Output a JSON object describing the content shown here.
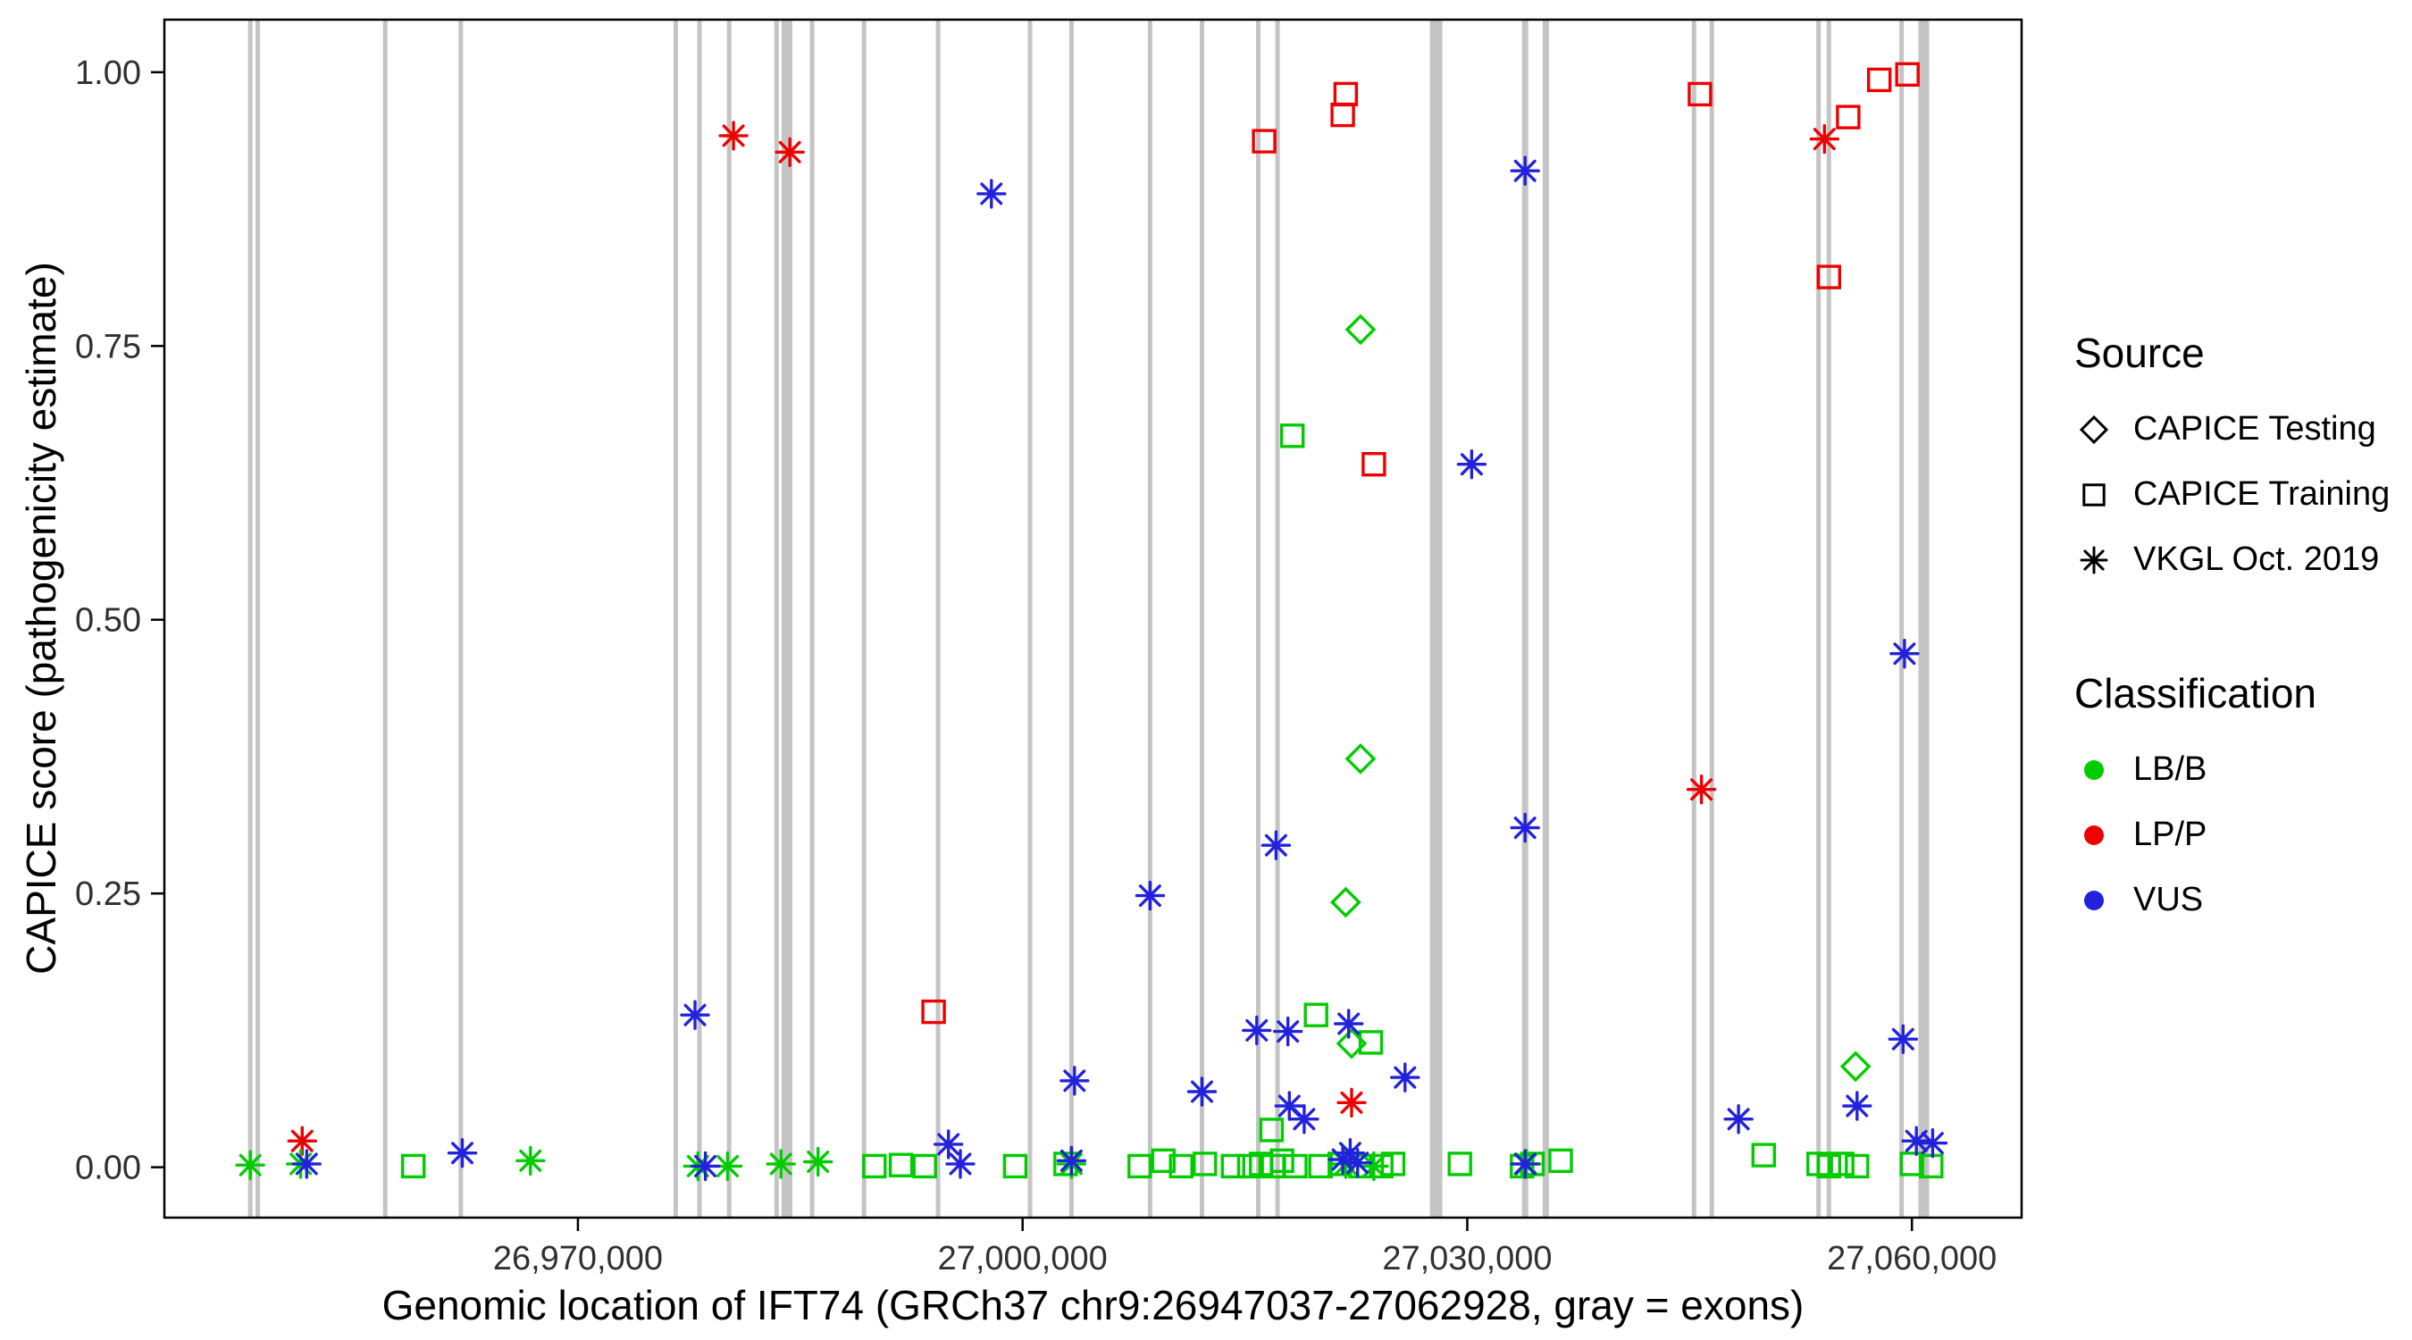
{
  "chart_data": {
    "type": "scatter",
    "title": "",
    "xlabel": "Genomic location of IFT74 (GRCh37 chr9:26947037-27062928, gray = exons)",
    "ylabel": "CAPICE score (pathogenicity estimate)",
    "xlim": [
      26942100,
      27067400
    ],
    "ylim": [
      -0.046,
      1.048
    ],
    "grid": "off",
    "x_ticks": [
      {
        "value": 26970000,
        "label": "26,970,000"
      },
      {
        "value": 27000000,
        "label": "27,000,000"
      },
      {
        "value": 27030000,
        "label": "27,030,000"
      },
      {
        "value": 27060000,
        "label": "27,060,000"
      }
    ],
    "y_ticks": [
      {
        "value": 0.0,
        "label": "0.00"
      },
      {
        "value": 0.25,
        "label": "0.25"
      },
      {
        "value": 0.5,
        "label": "0.50"
      },
      {
        "value": 0.75,
        "label": "0.75"
      },
      {
        "value": 1.0,
        "label": "1.00"
      }
    ],
    "colors": {
      "exon": "#c4c4c4",
      "panel_border": "#000000",
      "axis_text": "#303030"
    },
    "legend": {
      "source_title": "Source",
      "classification_title": "Classification",
      "position": "right",
      "sources": [
        {
          "label": "CAPICE Testing",
          "shape": "diamond"
        },
        {
          "label": "CAPICE Training",
          "shape": "square"
        },
        {
          "label": "VKGL Oct. 2019",
          "shape": "asterisk"
        }
      ],
      "classes": [
        {
          "label": "LB/B",
          "color": "#00cc00"
        },
        {
          "label": "LP/P",
          "color": "#ee0000"
        },
        {
          "label": "VUS",
          "color": "#2222dd"
        }
      ]
    },
    "exons_columns": [
      "genomic_position",
      "band_width_px"
    ],
    "exons": [
      [
        26947900,
        5
      ],
      [
        26948400,
        5
      ],
      [
        26957000,
        5
      ],
      [
        26962100,
        5
      ],
      [
        26976600,
        5
      ],
      [
        26978200,
        5
      ],
      [
        26980200,
        5
      ],
      [
        26983400,
        5
      ],
      [
        26984100,
        12
      ],
      [
        26985800,
        5
      ],
      [
        26989300,
        5
      ],
      [
        26994300,
        5
      ],
      [
        27000500,
        5
      ],
      [
        27003300,
        5
      ],
      [
        27008600,
        5
      ],
      [
        27012100,
        5
      ],
      [
        27015900,
        5
      ],
      [
        27017200,
        5
      ],
      [
        27027900,
        14
      ],
      [
        27033900,
        7
      ],
      [
        27035300,
        7
      ],
      [
        27045300,
        5
      ],
      [
        27046500,
        5
      ],
      [
        27053700,
        5
      ],
      [
        27054400,
        5
      ],
      [
        27059300,
        5
      ],
      [
        27060800,
        12
      ]
    ],
    "points_columns": [
      "genomic_position",
      "capice_score",
      "source",
      "classification"
    ],
    "points": [
      [
        26980500,
        0.942,
        "VKGL Oct. 2019",
        "LP/P"
      ],
      [
        26984300,
        0.927,
        "VKGL Oct. 2019",
        "LP/P"
      ],
      [
        27054100,
        0.939,
        "VKGL Oct. 2019",
        "LP/P"
      ],
      [
        26951400,
        0.024,
        "VKGL Oct. 2019",
        "LP/P"
      ],
      [
        27022200,
        0.059,
        "VKGL Oct. 2019",
        "LP/P"
      ],
      [
        27045800,
        0.345,
        "VKGL Oct. 2019",
        "LP/P"
      ],
      [
        27016300,
        0.937,
        "CAPICE Training",
        "LP/P"
      ],
      [
        27021800,
        0.98,
        "CAPICE Training",
        "LP/P"
      ],
      [
        27021600,
        0.961,
        "CAPICE Training",
        "LP/P"
      ],
      [
        27023700,
        0.642,
        "CAPICE Training",
        "LP/P"
      ],
      [
        26994000,
        0.142,
        "CAPICE Training",
        "LP/P"
      ],
      [
        27045700,
        0.98,
        "CAPICE Training",
        "LP/P"
      ],
      [
        27054400,
        0.813,
        "CAPICE Training",
        "LP/P"
      ],
      [
        27055700,
        0.959,
        "CAPICE Training",
        "LP/P"
      ],
      [
        27057800,
        0.993,
        "CAPICE Training",
        "LP/P"
      ],
      [
        27059700,
        0.998,
        "CAPICE Training",
        "LP/P"
      ],
      [
        27022800,
        0.765,
        "CAPICE Testing",
        "LB/B"
      ],
      [
        27022800,
        0.373,
        "CAPICE Testing",
        "LB/B"
      ],
      [
        27021800,
        0.242,
        "CAPICE Testing",
        "LB/B"
      ],
      [
        27022200,
        0.113,
        "CAPICE Testing",
        "LB/B"
      ],
      [
        27056200,
        0.092,
        "CAPICE Testing",
        "LB/B"
      ],
      [
        27018200,
        0.668,
        "CAPICE Training",
        "LB/B"
      ],
      [
        27019800,
        0.139,
        "CAPICE Training",
        "LB/B"
      ],
      [
        27023500,
        0.114,
        "CAPICE Training",
        "LB/B"
      ],
      [
        27016800,
        0.034,
        "CAPICE Training",
        "LB/B"
      ],
      [
        26958900,
        0.001,
        "CAPICE Training",
        "LB/B"
      ],
      [
        26990000,
        0.001,
        "CAPICE Training",
        "LB/B"
      ],
      [
        26991800,
        0.002,
        "CAPICE Training",
        "LB/B"
      ],
      [
        26993400,
        0.001,
        "CAPICE Training",
        "LB/B"
      ],
      [
        26999500,
        0.001,
        "CAPICE Training",
        "LB/B"
      ],
      [
        27002900,
        0.003,
        "CAPICE Training",
        "LB/B"
      ],
      [
        27007900,
        0.001,
        "CAPICE Training",
        "LB/B"
      ],
      [
        27009500,
        0.006,
        "CAPICE Training",
        "LB/B"
      ],
      [
        27010700,
        0.001,
        "CAPICE Training",
        "LB/B"
      ],
      [
        27012300,
        0.003,
        "CAPICE Training",
        "LB/B"
      ],
      [
        27014200,
        0.001,
        "CAPICE Training",
        "LB/B"
      ],
      [
        27015300,
        0.001,
        "CAPICE Training",
        "LB/B"
      ],
      [
        27016100,
        0.003,
        "CAPICE Training",
        "LB/B"
      ],
      [
        27016900,
        0.001,
        "CAPICE Training",
        "LB/B"
      ],
      [
        27017500,
        0.006,
        "CAPICE Training",
        "LB/B"
      ],
      [
        27018400,
        0.001,
        "CAPICE Training",
        "LB/B"
      ],
      [
        27020100,
        0.001,
        "CAPICE Training",
        "LB/B"
      ],
      [
        27021400,
        0.003,
        "CAPICE Training",
        "LB/B"
      ],
      [
        27022800,
        0.001,
        "CAPICE Training",
        "LB/B"
      ],
      [
        27024200,
        0.001,
        "CAPICE Training",
        "LB/B"
      ],
      [
        27025000,
        0.003,
        "CAPICE Training",
        "LB/B"
      ],
      [
        27029500,
        0.003,
        "CAPICE Training",
        "LB/B"
      ],
      [
        27033700,
        0.001,
        "CAPICE Training",
        "LB/B"
      ],
      [
        27034400,
        0.003,
        "CAPICE Training",
        "LB/B"
      ],
      [
        27036300,
        0.006,
        "CAPICE Training",
        "LB/B"
      ],
      [
        27050000,
        0.011,
        "CAPICE Training",
        "LB/B"
      ],
      [
        27053700,
        0.003,
        "CAPICE Training",
        "LB/B"
      ],
      [
        27054400,
        0.001,
        "CAPICE Training",
        "LB/B"
      ],
      [
        27055300,
        0.003,
        "CAPICE Training",
        "LB/B"
      ],
      [
        27056300,
        0.001,
        "CAPICE Training",
        "LB/B"
      ],
      [
        27060000,
        0.003,
        "CAPICE Training",
        "LB/B"
      ],
      [
        27061300,
        0.001,
        "CAPICE Training",
        "LB/B"
      ],
      [
        26947900,
        0.002,
        "VKGL Oct. 2019",
        "LB/B"
      ],
      [
        26951300,
        0.003,
        "VKGL Oct. 2019",
        "LB/B"
      ],
      [
        26966800,
        0.006,
        "VKGL Oct. 2019",
        "LB/B"
      ],
      [
        26978100,
        0.001,
        "VKGL Oct. 2019",
        "LB/B"
      ],
      [
        26980100,
        0.001,
        "VKGL Oct. 2019",
        "LB/B"
      ],
      [
        26983700,
        0.003,
        "VKGL Oct. 2019",
        "LB/B"
      ],
      [
        26986200,
        0.005,
        "VKGL Oct. 2019",
        "LB/B"
      ],
      [
        27003300,
        0.003,
        "VKGL Oct. 2019",
        "LB/B"
      ],
      [
        27021800,
        0.003,
        "VKGL Oct. 2019",
        "LB/B"
      ],
      [
        27023700,
        0.001,
        "VKGL Oct. 2019",
        "LB/B"
      ],
      [
        27034000,
        0.003,
        "VKGL Oct. 2019",
        "LB/B"
      ],
      [
        26997900,
        0.889,
        "VKGL Oct. 2019",
        "VUS"
      ],
      [
        27033900,
        0.91,
        "VKGL Oct. 2019",
        "VUS"
      ],
      [
        27030300,
        0.642,
        "VKGL Oct. 2019",
        "VUS"
      ],
      [
        27059500,
        0.469,
        "VKGL Oct. 2019",
        "VUS"
      ],
      [
        27017100,
        0.294,
        "VKGL Oct. 2019",
        "VUS"
      ],
      [
        27033900,
        0.31,
        "VKGL Oct. 2019",
        "VUS"
      ],
      [
        27008600,
        0.248,
        "VKGL Oct. 2019",
        "VUS"
      ],
      [
        26977900,
        0.139,
        "VKGL Oct. 2019",
        "VUS"
      ],
      [
        27015800,
        0.125,
        "VKGL Oct. 2019",
        "VUS"
      ],
      [
        27017900,
        0.124,
        "VKGL Oct. 2019",
        "VUS"
      ],
      [
        27022000,
        0.131,
        "VKGL Oct. 2019",
        "VUS"
      ],
      [
        27003500,
        0.079,
        "VKGL Oct. 2019",
        "VUS"
      ],
      [
        27025800,
        0.082,
        "VKGL Oct. 2019",
        "VUS"
      ],
      [
        27012100,
        0.069,
        "VKGL Oct. 2019",
        "VUS"
      ],
      [
        27018000,
        0.056,
        "VKGL Oct. 2019",
        "VUS"
      ],
      [
        27019000,
        0.044,
        "VKGL Oct. 2019",
        "VUS"
      ],
      [
        27048300,
        0.044,
        "VKGL Oct. 2019",
        "VUS"
      ],
      [
        27056300,
        0.056,
        "VKGL Oct. 2019",
        "VUS"
      ],
      [
        27059400,
        0.117,
        "VKGL Oct. 2019",
        "VUS"
      ],
      [
        26995000,
        0.021,
        "VKGL Oct. 2019",
        "VUS"
      ],
      [
        27060300,
        0.024,
        "VKGL Oct. 2019",
        "VUS"
      ],
      [
        27061400,
        0.022,
        "VKGL Oct. 2019",
        "VUS"
      ],
      [
        26962200,
        0.013,
        "VKGL Oct. 2019",
        "VUS"
      ],
      [
        26951700,
        0.003,
        "VKGL Oct. 2019",
        "VUS"
      ],
      [
        26978600,
        0.001,
        "VKGL Oct. 2019",
        "VUS"
      ],
      [
        26995800,
        0.003,
        "VKGL Oct. 2019",
        "VUS"
      ],
      [
        27003300,
        0.006,
        "VKGL Oct. 2019",
        "VUS"
      ],
      [
        27021600,
        0.007,
        "VKGL Oct. 2019",
        "VUS"
      ],
      [
        27022100,
        0.013,
        "VKGL Oct. 2019",
        "VUS"
      ],
      [
        27022600,
        0.004,
        "VKGL Oct. 2019",
        "VUS"
      ],
      [
        27033900,
        0.003,
        "VKGL Oct. 2019",
        "VUS"
      ]
    ]
  }
}
